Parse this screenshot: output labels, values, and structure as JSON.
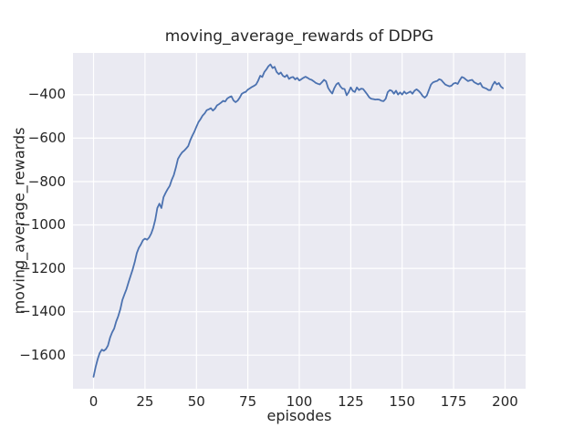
{
  "figure": {
    "background": "#ffffff"
  },
  "chart_data": {
    "type": "line",
    "title": "moving_average_rewards of DDPG",
    "xlabel": "episodes",
    "ylabel": "moving_average_rewards",
    "xlim": [
      -10,
      210
    ],
    "ylim": [
      -1755,
      -207
    ],
    "xticks": [
      0,
      25,
      50,
      75,
      100,
      125,
      150,
      175,
      200
    ],
    "xtick_labels": [
      "0",
      "25",
      "50",
      "75",
      "100",
      "125",
      "150",
      "175",
      "200"
    ],
    "yticks": [
      -400,
      -600,
      -800,
      -1000,
      -1200,
      -1400,
      -1600
    ],
    "ytick_labels": [
      "−400",
      "−600",
      "−800",
      "−1000",
      "−1200",
      "−1400",
      "−1600"
    ],
    "grid": true,
    "legend": null,
    "style": {
      "axes_bg": "#eaeaf2",
      "grid_color": "#ffffff",
      "grid_width": 1.2,
      "line_color": "#4c72b0",
      "line_width": 1.8,
      "text_color": "#262626"
    },
    "series": [
      {
        "name": "moving_average_rewards",
        "points": [
          [
            0,
            -1700
          ],
          [
            1,
            -1655
          ],
          [
            2,
            -1618
          ],
          [
            3,
            -1590
          ],
          [
            4,
            -1575
          ],
          [
            5,
            -1580
          ],
          [
            6,
            -1572
          ],
          [
            7,
            -1556
          ],
          [
            8,
            -1520
          ],
          [
            9,
            -1496
          ],
          [
            10,
            -1478
          ],
          [
            11,
            -1446
          ],
          [
            12,
            -1420
          ],
          [
            13,
            -1388
          ],
          [
            14,
            -1346
          ],
          [
            15,
            -1320
          ],
          [
            16,
            -1296
          ],
          [
            17,
            -1264
          ],
          [
            18,
            -1235
          ],
          [
            19,
            -1205
          ],
          [
            20,
            -1172
          ],
          [
            21,
            -1130
          ],
          [
            22,
            -1106
          ],
          [
            23,
            -1090
          ],
          [
            24,
            -1070
          ],
          [
            25,
            -1063
          ],
          [
            26,
            -1068
          ],
          [
            27,
            -1058
          ],
          [
            28,
            -1040
          ],
          [
            29,
            -1014
          ],
          [
            30,
            -975
          ],
          [
            31,
            -922
          ],
          [
            32,
            -902
          ],
          [
            33,
            -922
          ],
          [
            34,
            -872
          ],
          [
            35,
            -852
          ],
          [
            36,
            -835
          ],
          [
            37,
            -820
          ],
          [
            38,
            -792
          ],
          [
            39,
            -770
          ],
          [
            40,
            -736
          ],
          [
            41,
            -696
          ],
          [
            42,
            -680
          ],
          [
            43,
            -666
          ],
          [
            44,
            -658
          ],
          [
            45,
            -648
          ],
          [
            46,
            -636
          ],
          [
            47,
            -610
          ],
          [
            48,
            -588
          ],
          [
            49,
            -570
          ],
          [
            50,
            -547
          ],
          [
            51,
            -526
          ],
          [
            52,
            -512
          ],
          [
            53,
            -496
          ],
          [
            54,
            -486
          ],
          [
            55,
            -471
          ],
          [
            56,
            -467
          ],
          [
            57,
            -462
          ],
          [
            58,
            -473
          ],
          [
            59,
            -464
          ],
          [
            60,
            -449
          ],
          [
            61,
            -443
          ],
          [
            62,
            -436
          ],
          [
            63,
            -428
          ],
          [
            64,
            -431
          ],
          [
            65,
            -417
          ],
          [
            66,
            -411
          ],
          [
            67,
            -407
          ],
          [
            68,
            -426
          ],
          [
            69,
            -434
          ],
          [
            70,
            -427
          ],
          [
            71,
            -414
          ],
          [
            72,
            -396
          ],
          [
            73,
            -390
          ],
          [
            74,
            -386
          ],
          [
            75,
            -376
          ],
          [
            76,
            -370
          ],
          [
            77,
            -364
          ],
          [
            78,
            -359
          ],
          [
            79,
            -352
          ],
          [
            80,
            -335
          ],
          [
            81,
            -312
          ],
          [
            82,
            -318
          ],
          [
            83,
            -295
          ],
          [
            84,
            -283
          ],
          [
            85,
            -268
          ],
          [
            86,
            -260
          ],
          [
            87,
            -277
          ],
          [
            88,
            -271
          ],
          [
            89,
            -295
          ],
          [
            90,
            -305
          ],
          [
            91,
            -297
          ],
          [
            92,
            -312
          ],
          [
            93,
            -318
          ],
          [
            94,
            -309
          ],
          [
            95,
            -327
          ],
          [
            96,
            -320
          ],
          [
            97,
            -318
          ],
          [
            98,
            -329
          ],
          [
            99,
            -322
          ],
          [
            100,
            -334
          ],
          [
            101,
            -328
          ],
          [
            102,
            -322
          ],
          [
            103,
            -317
          ],
          [
            104,
            -322
          ],
          [
            105,
            -328
          ],
          [
            106,
            -331
          ],
          [
            107,
            -338
          ],
          [
            108,
            -345
          ],
          [
            109,
            -349
          ],
          [
            110,
            -352
          ],
          [
            111,
            -342
          ],
          [
            112,
            -331
          ],
          [
            113,
            -338
          ],
          [
            114,
            -368
          ],
          [
            115,
            -383
          ],
          [
            116,
            -394
          ],
          [
            117,
            -370
          ],
          [
            118,
            -352
          ],
          [
            119,
            -345
          ],
          [
            120,
            -362
          ],
          [
            121,
            -372
          ],
          [
            122,
            -373
          ],
          [
            123,
            -402
          ],
          [
            124,
            -388
          ],
          [
            125,
            -366
          ],
          [
            126,
            -382
          ],
          [
            127,
            -387
          ],
          [
            128,
            -366
          ],
          [
            129,
            -378
          ],
          [
            130,
            -372
          ],
          [
            131,
            -373
          ],
          [
            132,
            -385
          ],
          [
            133,
            -398
          ],
          [
            134,
            -412
          ],
          [
            135,
            -418
          ],
          [
            136,
            -420
          ],
          [
            137,
            -422
          ],
          [
            138,
            -421
          ],
          [
            139,
            -423
          ],
          [
            140,
            -428
          ],
          [
            141,
            -429
          ],
          [
            142,
            -418
          ],
          [
            143,
            -388
          ],
          [
            144,
            -378
          ],
          [
            145,
            -382
          ],
          [
            146,
            -395
          ],
          [
            147,
            -381
          ],
          [
            148,
            -399
          ],
          [
            149,
            -389
          ],
          [
            150,
            -399
          ],
          [
            151,
            -385
          ],
          [
            152,
            -395
          ],
          [
            153,
            -390
          ],
          [
            154,
            -385
          ],
          [
            155,
            -395
          ],
          [
            156,
            -381
          ],
          [
            157,
            -375
          ],
          [
            158,
            -382
          ],
          [
            159,
            -392
          ],
          [
            160,
            -406
          ],
          [
            161,
            -413
          ],
          [
            162,
            -403
          ],
          [
            163,
            -378
          ],
          [
            164,
            -353
          ],
          [
            165,
            -343
          ],
          [
            166,
            -339
          ],
          [
            167,
            -336
          ],
          [
            168,
            -328
          ],
          [
            169,
            -332
          ],
          [
            170,
            -343
          ],
          [
            171,
            -353
          ],
          [
            172,
            -357
          ],
          [
            173,
            -361
          ],
          [
            174,
            -358
          ],
          [
            175,
            -348
          ],
          [
            176,
            -345
          ],
          [
            177,
            -350
          ],
          [
            178,
            -332
          ],
          [
            179,
            -318
          ],
          [
            180,
            -322
          ],
          [
            181,
            -330
          ],
          [
            182,
            -337
          ],
          [
            183,
            -333
          ],
          [
            184,
            -331
          ],
          [
            185,
            -342
          ],
          [
            186,
            -347
          ],
          [
            187,
            -352
          ],
          [
            188,
            -346
          ],
          [
            189,
            -364
          ],
          [
            190,
            -368
          ],
          [
            191,
            -372
          ],
          [
            192,
            -378
          ],
          [
            193,
            -378
          ],
          [
            194,
            -355
          ],
          [
            195,
            -340
          ],
          [
            196,
            -352
          ],
          [
            197,
            -346
          ],
          [
            198,
            -362
          ],
          [
            199,
            -370
          ]
        ]
      }
    ]
  }
}
